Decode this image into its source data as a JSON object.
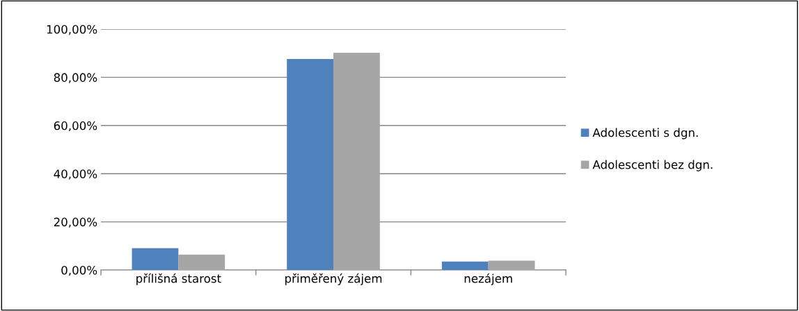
{
  "chart_data": {
    "type": "bar",
    "categories": [
      "přílišná starost",
      "přiměřený zájem",
      "nezájem"
    ],
    "series": [
      {
        "name": "Adolescenti s dgn.",
        "color": "#4f81bd",
        "values": [
          9.1,
          87.6,
          3.5
        ]
      },
      {
        "name": "Adolescenti bez dgn.",
        "color": "#a6a6a6",
        "values": [
          6.4,
          90.2,
          3.9
        ]
      }
    ],
    "ylim": [
      0,
      100
    ],
    "yticks": [
      {
        "value": 0,
        "label": "0,00%"
      },
      {
        "value": 20,
        "label": "20,00%"
      },
      {
        "value": 40,
        "label": "40,00%"
      },
      {
        "value": 60,
        "label": "60,00%"
      },
      {
        "value": 80,
        "label": "80,00%"
      },
      {
        "value": 100,
        "label": "100,00%"
      }
    ],
    "grid": "y",
    "legend": "right"
  }
}
